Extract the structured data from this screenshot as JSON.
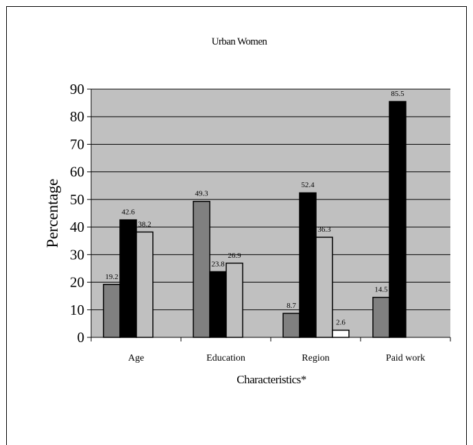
{
  "chart_data": {
    "type": "bar",
    "title": "Urban Women",
    "xlabel": "Characteristics*",
    "ylabel": "Percentage",
    "ylim": [
      0,
      90
    ],
    "yticks": [
      0,
      10,
      20,
      30,
      40,
      50,
      60,
      70,
      80,
      90
    ],
    "grid": true,
    "legend": "none",
    "categories": [
      "Age",
      "Education",
      "Region",
      "Paid work"
    ],
    "groups": [
      {
        "category": "Age",
        "bars": [
          {
            "value": 19.2,
            "label": "19.2",
            "color": "#808080"
          },
          {
            "value": 42.6,
            "label": "42.6",
            "color": "#000000"
          },
          {
            "value": 38.2,
            "label": "38.2",
            "color": "#c0c0c0"
          }
        ]
      },
      {
        "category": "Education",
        "bars": [
          {
            "value": 49.3,
            "label": "49.3",
            "color": "#808080"
          },
          {
            "value": 23.8,
            "label": "23.8",
            "color": "#000000"
          },
          {
            "value": 26.9,
            "label": "26.9",
            "color": "#c0c0c0"
          }
        ]
      },
      {
        "category": "Region",
        "bars": [
          {
            "value": 8.7,
            "label": "8.7",
            "color": "#808080"
          },
          {
            "value": 52.4,
            "label": "52.4",
            "color": "#000000"
          },
          {
            "value": 36.3,
            "label": "36.3",
            "color": "#c0c0c0"
          },
          {
            "value": 2.6,
            "label": "2.6",
            "color": "#ffffff"
          }
        ]
      },
      {
        "category": "Paid work",
        "bars": [
          {
            "value": 14.5,
            "label": "14.5",
            "color": "#808080"
          },
          {
            "value": 85.5,
            "label": "85.5",
            "color": "#000000"
          }
        ]
      }
    ],
    "plot_background": "#c0c0c0"
  }
}
